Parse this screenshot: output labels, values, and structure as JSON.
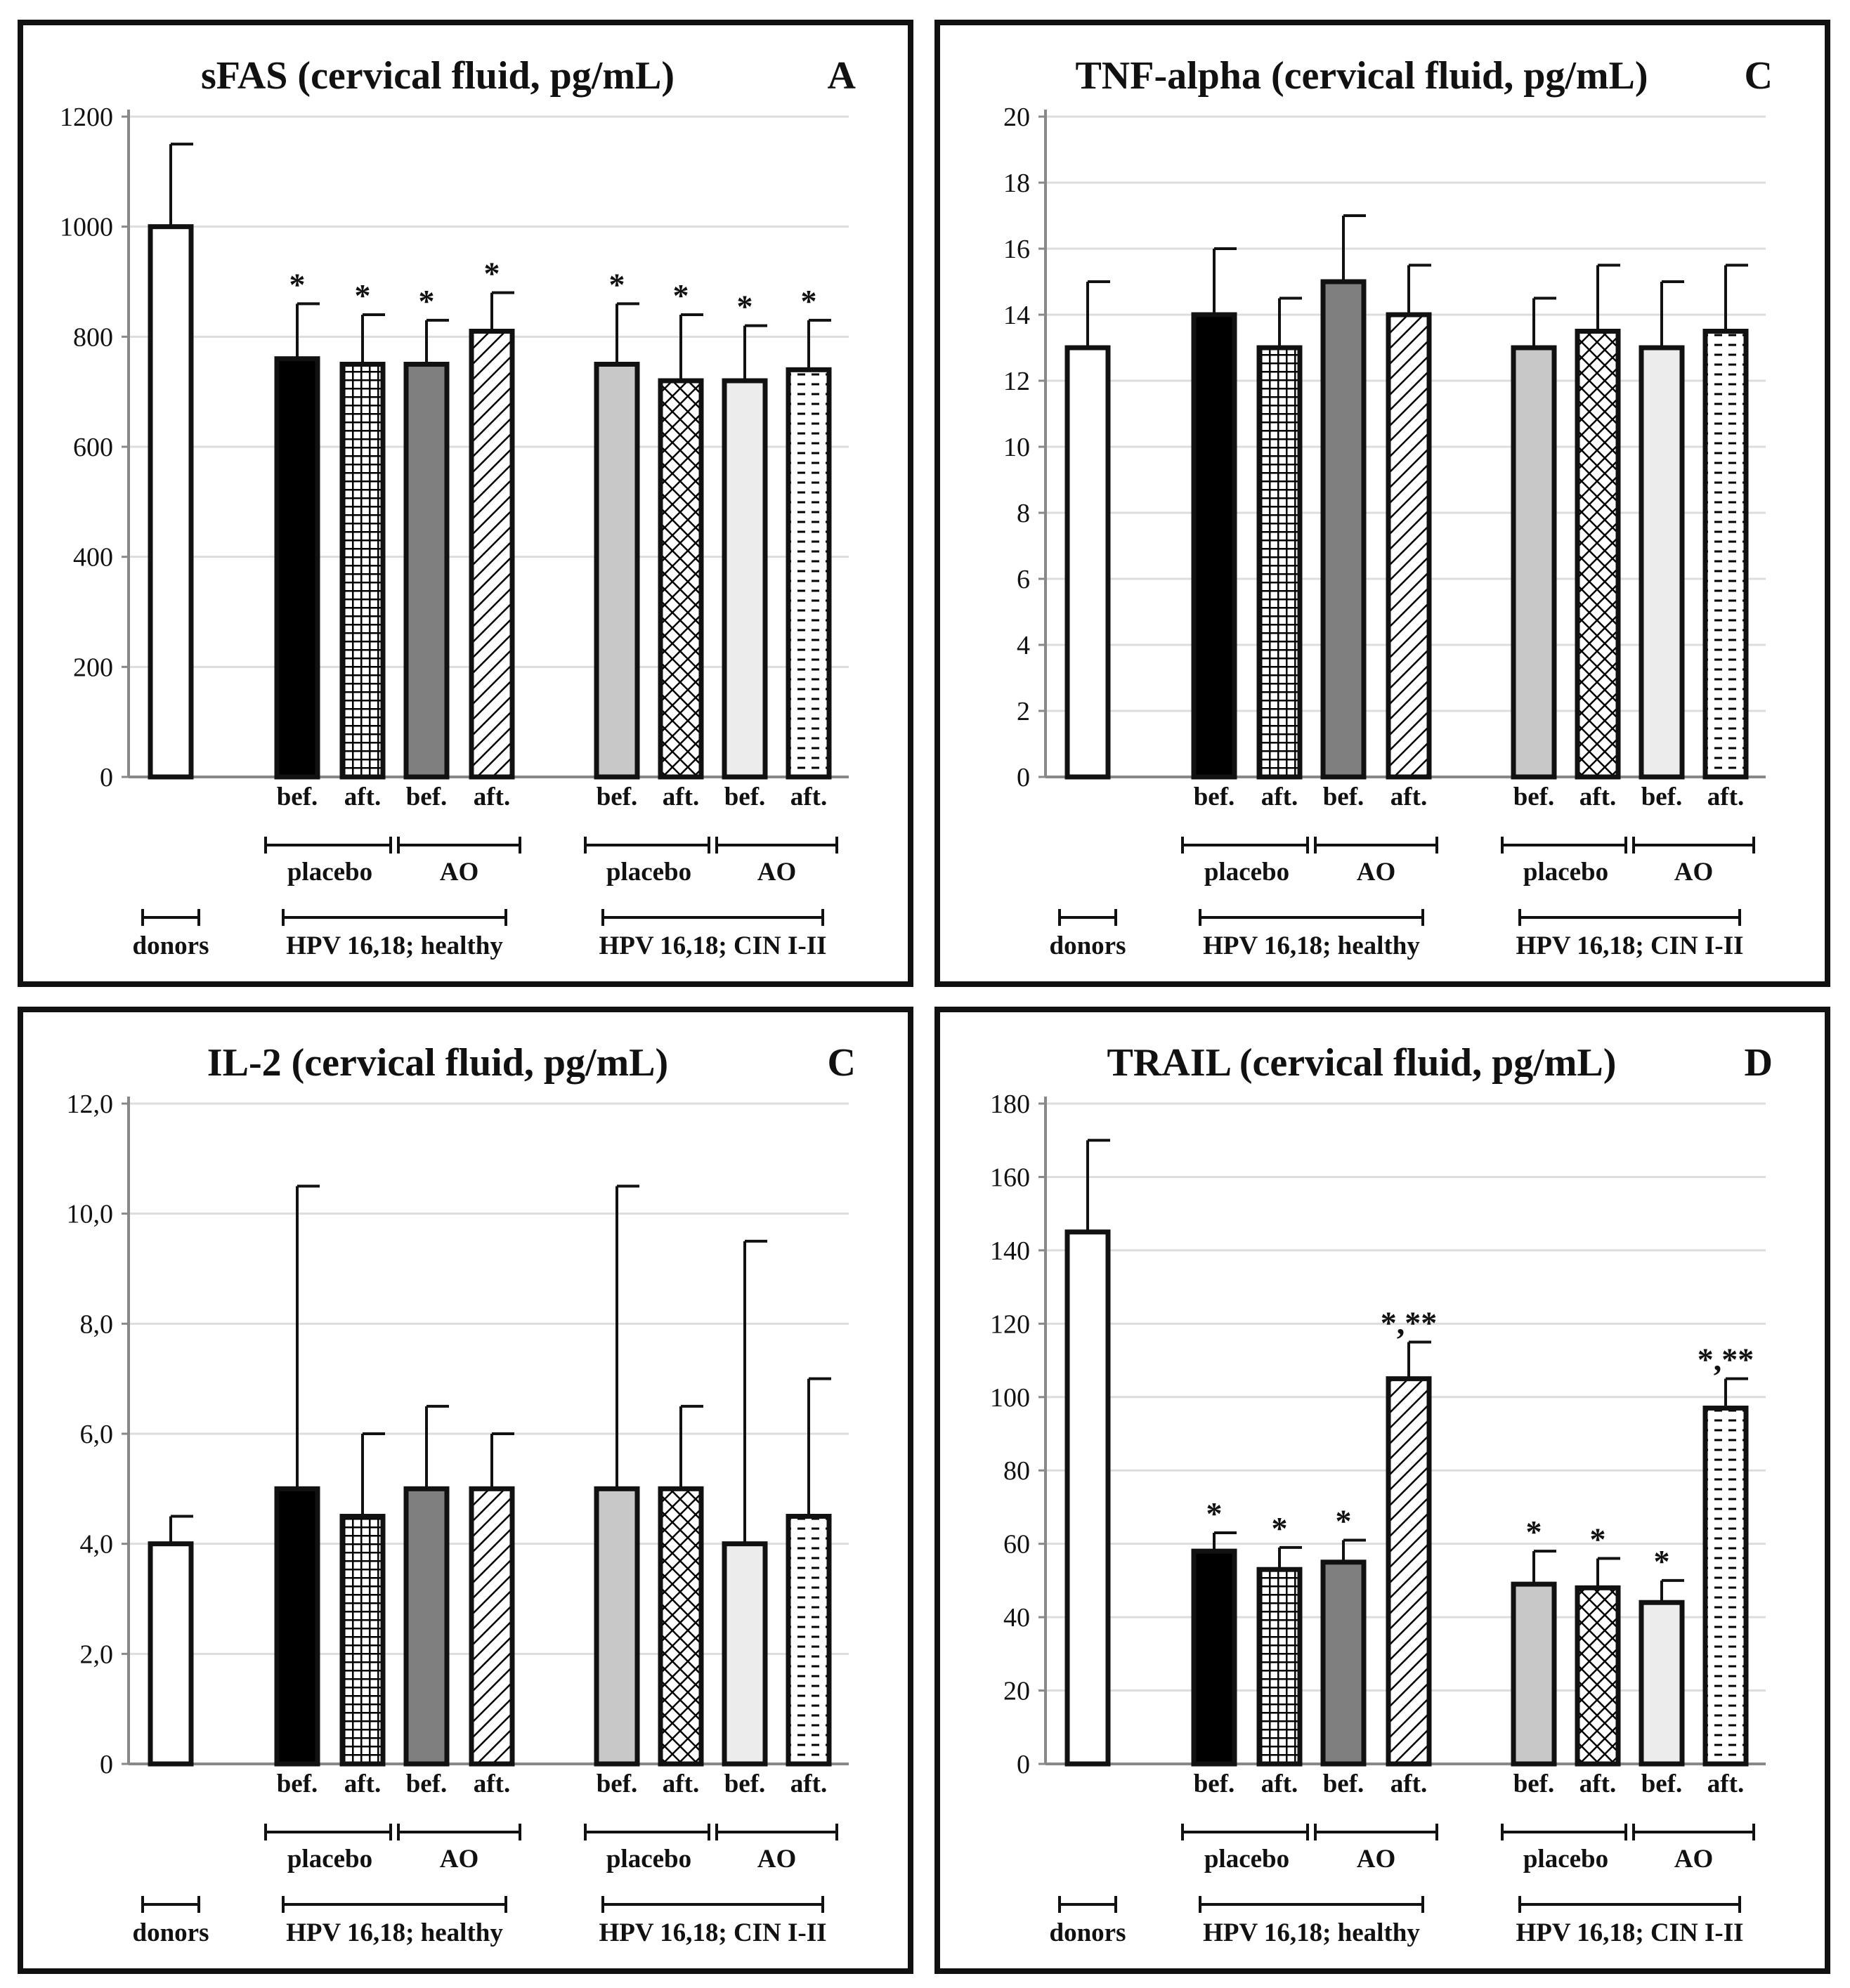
{
  "patterns": {
    "legend": [
      "donors",
      "bef. placebo healthy",
      "aft. placebo healthy",
      "bef. AO healthy",
      "aft. AO healthy",
      "bef. placebo CIN",
      "aft. placebo CIN",
      "bef. AO CIN",
      "aft. AO CIN"
    ]
  },
  "group_labels": {
    "bef": "bef.",
    "aft": "aft.",
    "placebo": "placebo",
    "ao": "AO",
    "donors": "donors",
    "healthy": "HPV 16,18; healthy",
    "cin": "HPV 16,18; CIN I-II"
  },
  "colors": {
    "black": "#000000",
    "dark_gray": "#7f7f7f",
    "light_gray": "#c8c8c8",
    "very_light": "#ececec",
    "white": "#ffffff",
    "grid": "#dddddd",
    "axis": "#888888"
  },
  "chart_data": [
    {
      "type": "bar",
      "title": "sFAS (cervical fluid, pg/mL)",
      "panel_letter": "A",
      "categories": [
        "donors",
        "bef. placebo (healthy)",
        "aft. placebo (healthy)",
        "bef. AO (healthy)",
        "aft. AO (healthy)",
        "bef. placebo (CIN I-II)",
        "aft. placebo (CIN I-II)",
        "bef. AO (CIN I-II)",
        "aft. AO (CIN I-II)"
      ],
      "values": [
        1000,
        760,
        750,
        750,
        810,
        750,
        720,
        720,
        740
      ],
      "error_upper": [
        1150,
        860,
        840,
        830,
        880,
        860,
        840,
        820,
        830
      ],
      "annotations": [
        "",
        "*",
        "*",
        "*",
        "*",
        "*",
        "*",
        "*",
        "*"
      ],
      "yticks": [
        "0",
        "200",
        "400",
        "600",
        "800",
        "1000",
        "1200"
      ],
      "ylim": [
        0,
        1200
      ]
    },
    {
      "type": "bar",
      "title": "TNF-alpha (cervical fluid, pg/mL)",
      "panel_letter": "C",
      "categories": [
        "donors",
        "bef. placebo (healthy)",
        "aft. placebo (healthy)",
        "bef. AO (healthy)",
        "aft. AO (healthy)",
        "bef. placebo (CIN I-II)",
        "aft. placebo (CIN I-II)",
        "bef. AO (CIN I-II)",
        "aft. AO (CIN I-II)"
      ],
      "values": [
        13,
        14,
        13,
        15,
        14,
        13,
        13.5,
        13,
        13.5
      ],
      "error_upper": [
        15,
        16,
        14.5,
        17,
        15.5,
        14.5,
        15.5,
        15,
        15.5
      ],
      "annotations": [
        "",
        "",
        "",
        "",
        "",
        "",
        "",
        "",
        ""
      ],
      "yticks": [
        "0",
        "2",
        "4",
        "6",
        "8",
        "10",
        "12",
        "14",
        "16",
        "18",
        "20"
      ],
      "ylim": [
        0,
        20
      ]
    },
    {
      "type": "bar",
      "title": "IL-2 (cervical fluid, pg/mL)",
      "panel_letter": "C",
      "categories": [
        "donors",
        "bef. placebo (healthy)",
        "aft. placebo (healthy)",
        "bef. AO (healthy)",
        "aft. AO (healthy)",
        "bef. placebo (CIN I-II)",
        "aft. placebo (CIN I-II)",
        "bef. AO (CIN I-II)",
        "aft. AO (CIN I-II)"
      ],
      "values": [
        4.0,
        5.0,
        4.5,
        5.0,
        5.0,
        5.0,
        5.0,
        4.0,
        4.5
      ],
      "error_upper": [
        4.5,
        10.5,
        6.0,
        6.5,
        6.0,
        10.5,
        6.5,
        9.5,
        7.0
      ],
      "annotations": [
        "",
        "",
        "",
        "",
        "",
        "",
        "",
        "",
        ""
      ],
      "yticks": [
        "0",
        "2,0",
        "4,0",
        "6,0",
        "8,0",
        "10,0",
        "12,0"
      ],
      "ylim": [
        0,
        12
      ]
    },
    {
      "type": "bar",
      "title": "TRAIL (cervical fluid, pg/mL)",
      "panel_letter": "D",
      "categories": [
        "donors",
        "bef. placebo (healthy)",
        "aft. placebo (healthy)",
        "bef. AO (healthy)",
        "aft. AO (healthy)",
        "bef. placebo (CIN I-II)",
        "aft. placebo (CIN I-II)",
        "bef. AO (CIN I-II)",
        "aft. AO (CIN I-II)"
      ],
      "values": [
        145,
        58,
        53,
        55,
        105,
        49,
        48,
        44,
        97
      ],
      "error_upper": [
        170,
        63,
        59,
        61,
        115,
        58,
        56,
        50,
        105
      ],
      "annotations": [
        "",
        "*",
        "*",
        "*",
        "*,**",
        "*",
        "*",
        "*",
        "*,**"
      ],
      "yticks": [
        "0",
        "20",
        "40",
        "60",
        "80",
        "100",
        "120",
        "140",
        "160",
        "180"
      ],
      "ylim": [
        0,
        180
      ]
    }
  ]
}
